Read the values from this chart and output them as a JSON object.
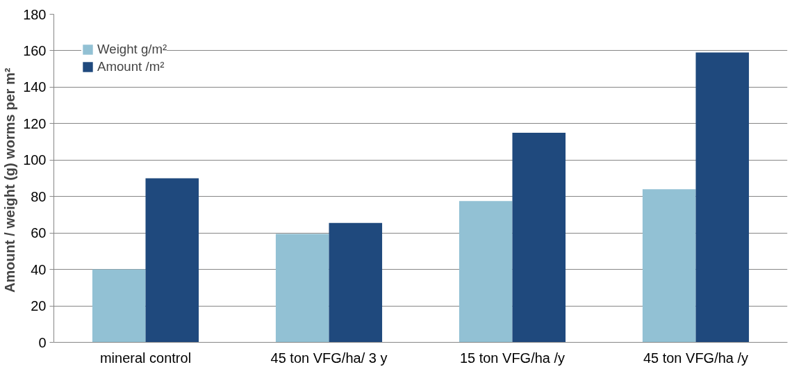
{
  "chart_data": {
    "type": "bar",
    "ylabel": "Amount  / weight (g) worms per m²",
    "categories": [
      "mineral control",
      "45 ton VFG/ha/ 3 y",
      "15 ton VFG/ha /y",
      "45 ton VFG/ha /y"
    ],
    "series": [
      {
        "name": "Weight g/m²",
        "color": "#92c1d4",
        "values": [
          40,
          59.5,
          77.5,
          84
        ]
      },
      {
        "name": "Amount /m²",
        "color": "#1f497d",
        "values": [
          90,
          65.5,
          115,
          159
        ]
      }
    ],
    "ylim": [
      0,
      180
    ],
    "yticks": [
      0,
      20,
      40,
      60,
      80,
      100,
      120,
      140,
      160,
      180
    ],
    "grid": "y",
    "legend": "top left"
  }
}
